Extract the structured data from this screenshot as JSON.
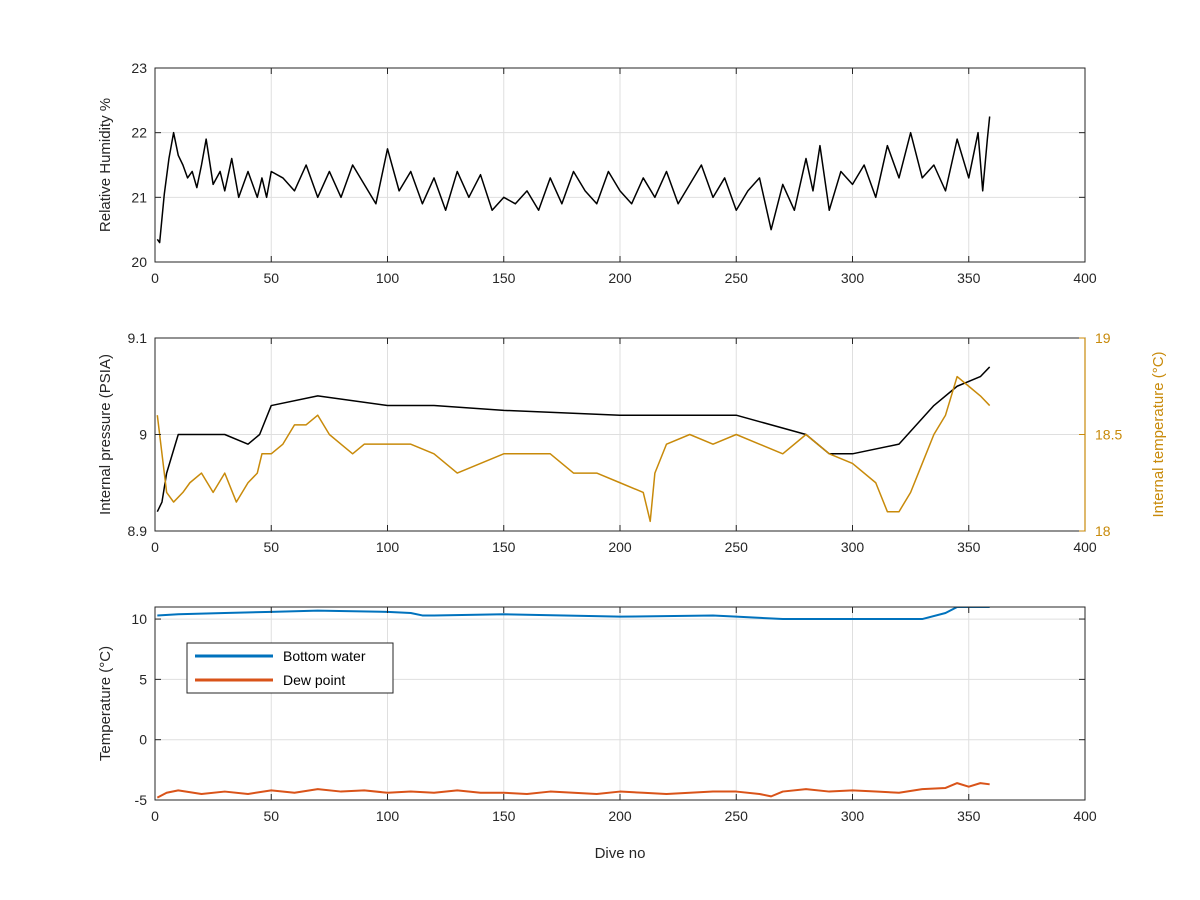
{
  "chart_data": [
    {
      "type": "line",
      "ylabel": "Relative Humidity %",
      "xlim": [
        0,
        400
      ],
      "ylim": [
        20,
        23
      ],
      "xticks": [
        "0",
        "50",
        "100",
        "150",
        "200",
        "250",
        "300",
        "350",
        "400"
      ],
      "yticks": [
        "20",
        "21",
        "22",
        "23"
      ],
      "grid": true,
      "series": [
        {
          "color": "#000000",
          "x": [
            1,
            2,
            4,
            6,
            8,
            10,
            12,
            14,
            16,
            18,
            20,
            22,
            25,
            28,
            30,
            33,
            36,
            40,
            44,
            46,
            48,
            50,
            55,
            60,
            65,
            70,
            75,
            80,
            85,
            90,
            95,
            100,
            105,
            110,
            115,
            120,
            125,
            130,
            135,
            140,
            145,
            150,
            155,
            160,
            165,
            170,
            175,
            180,
            185,
            190,
            195,
            200,
            205,
            210,
            215,
            220,
            225,
            230,
            235,
            240,
            245,
            250,
            255,
            260,
            265,
            270,
            275,
            280,
            283,
            286,
            290,
            295,
            300,
            305,
            310,
            315,
            320,
            325,
            330,
            335,
            340,
            345,
            350,
            354,
            356,
            358,
            359
          ],
          "y": [
            20.35,
            20.3,
            21.05,
            21.6,
            22.0,
            21.65,
            21.5,
            21.3,
            21.4,
            21.15,
            21.5,
            21.9,
            21.2,
            21.4,
            21.1,
            21.6,
            21.0,
            21.4,
            21.0,
            21.3,
            21.0,
            21.4,
            21.3,
            21.1,
            21.5,
            21.0,
            21.4,
            21.0,
            21.5,
            21.2,
            20.9,
            21.75,
            21.1,
            21.4,
            20.9,
            21.3,
            20.8,
            21.4,
            21.0,
            21.35,
            20.8,
            21.0,
            20.9,
            21.1,
            20.8,
            21.3,
            20.9,
            21.4,
            21.1,
            20.9,
            21.4,
            21.1,
            20.9,
            21.3,
            21.0,
            21.4,
            20.9,
            21.2,
            21.5,
            21.0,
            21.3,
            20.8,
            21.1,
            21.3,
            20.5,
            21.2,
            20.8,
            21.6,
            21.1,
            21.8,
            20.8,
            21.4,
            21.2,
            21.5,
            21.0,
            21.8,
            21.3,
            22.0,
            21.3,
            21.5,
            21.1,
            21.9,
            21.3,
            22.0,
            21.1,
            21.9,
            22.25
          ]
        }
      ]
    },
    {
      "type": "line",
      "ylabel": "Internal pressure (PSIA)",
      "y2label": "Internal temperature (°C)",
      "xlim": [
        0,
        400
      ],
      "ylim": [
        8.9,
        9.1
      ],
      "y2lim": [
        18,
        19
      ],
      "xticks": [
        "0",
        "50",
        "100",
        "150",
        "200",
        "250",
        "300",
        "350",
        "400"
      ],
      "yticks": [
        "8.9",
        "9",
        "9.1"
      ],
      "y2ticks": [
        "18",
        "18.5",
        "19"
      ],
      "grid": true,
      "series": [
        {
          "color": "#000000",
          "axis": "left",
          "x": [
            1,
            3,
            5,
            10,
            20,
            30,
            40,
            45,
            50,
            70,
            100,
            120,
            150,
            200,
            250,
            280,
            290,
            300,
            320,
            335,
            345,
            355,
            359
          ],
          "y": [
            8.92,
            8.93,
            8.96,
            9.0,
            9.0,
            9.0,
            8.99,
            9.0,
            9.03,
            9.04,
            9.03,
            9.03,
            9.025,
            9.02,
            9.02,
            9.0,
            8.98,
            8.98,
            8.99,
            9.03,
            9.05,
            9.06,
            9.07
          ]
        },
        {
          "color": "#c88a0a",
          "axis": "right",
          "x": [
            1,
            3,
            5,
            8,
            12,
            15,
            20,
            25,
            30,
            35,
            40,
            44,
            46,
            50,
            55,
            60,
            65,
            70,
            75,
            80,
            85,
            90,
            95,
            100,
            110,
            120,
            130,
            140,
            150,
            160,
            170,
            180,
            190,
            200,
            210,
            213,
            215,
            220,
            230,
            240,
            250,
            260,
            270,
            280,
            290,
            300,
            310,
            315,
            320,
            325,
            330,
            335,
            340,
            345,
            350,
            355,
            359
          ],
          "y": [
            18.6,
            18.4,
            18.2,
            18.15,
            18.2,
            18.25,
            18.3,
            18.2,
            18.3,
            18.15,
            18.25,
            18.3,
            18.4,
            18.4,
            18.45,
            18.55,
            18.55,
            18.6,
            18.5,
            18.45,
            18.4,
            18.45,
            18.45,
            18.45,
            18.45,
            18.4,
            18.3,
            18.35,
            18.4,
            18.4,
            18.4,
            18.3,
            18.3,
            18.25,
            18.2,
            18.05,
            18.3,
            18.45,
            18.5,
            18.45,
            18.5,
            18.45,
            18.4,
            18.5,
            18.4,
            18.35,
            18.25,
            18.1,
            18.1,
            18.2,
            18.35,
            18.5,
            18.6,
            18.8,
            18.75,
            18.7,
            18.65
          ]
        }
      ]
    },
    {
      "type": "line",
      "xlabel": "Dive no",
      "ylabel": "Temperature (°C)",
      "xlim": [
        0,
        400
      ],
      "ylim": [
        -5,
        11
      ],
      "xticks": [
        "0",
        "50",
        "100",
        "150",
        "200",
        "250",
        "300",
        "350",
        "400"
      ],
      "yticks": [
        "-5",
        "0",
        "5",
        "10"
      ],
      "grid": true,
      "legend": "top-left",
      "series": [
        {
          "name": "Bottom water",
          "color": "#0072bd",
          "x": [
            1,
            10,
            30,
            50,
            70,
            100,
            110,
            115,
            120,
            150,
            200,
            240,
            250,
            270,
            300,
            330,
            340,
            345,
            350,
            359
          ],
          "y": [
            10.3,
            10.4,
            10.5,
            10.6,
            10.7,
            10.6,
            10.5,
            10.3,
            10.3,
            10.4,
            10.2,
            10.3,
            10.2,
            10.0,
            10.0,
            10.0,
            10.5,
            11.0,
            11.0,
            11.0
          ]
        },
        {
          "name": "Dew point",
          "color": "#d95319",
          "x": [
            1,
            5,
            10,
            20,
            30,
            40,
            50,
            60,
            70,
            80,
            90,
            100,
            110,
            120,
            130,
            140,
            150,
            160,
            170,
            180,
            190,
            200,
            210,
            220,
            230,
            240,
            250,
            260,
            265,
            270,
            280,
            290,
            300,
            310,
            320,
            330,
            340,
            345,
            350,
            355,
            359
          ],
          "y": [
            -4.8,
            -4.4,
            -4.2,
            -4.5,
            -4.3,
            -4.5,
            -4.2,
            -4.4,
            -4.1,
            -4.3,
            -4.2,
            -4.4,
            -4.3,
            -4.4,
            -4.2,
            -4.4,
            -4.4,
            -4.5,
            -4.3,
            -4.4,
            -4.5,
            -4.3,
            -4.4,
            -4.5,
            -4.4,
            -4.3,
            -4.3,
            -4.5,
            -4.7,
            -4.3,
            -4.1,
            -4.3,
            -4.2,
            -4.3,
            -4.4,
            -4.1,
            -4.0,
            -3.6,
            -3.9,
            -3.6,
            -3.7
          ]
        }
      ]
    }
  ]
}
